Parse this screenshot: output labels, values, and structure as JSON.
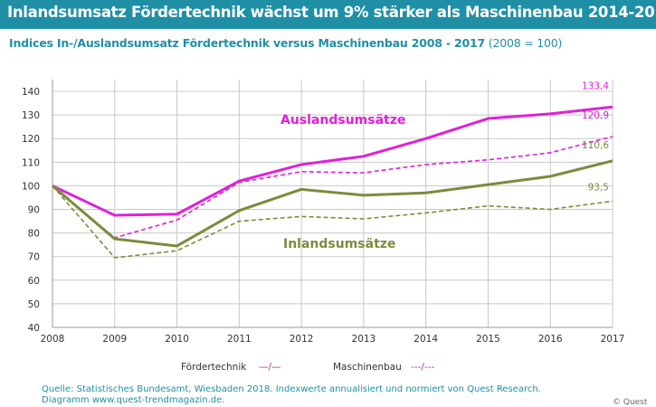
{
  "header": {
    "title": "Inlandsumsatz Fördertechnik wächst um 9% stärker als Maschinenbau 2014-2017",
    "subtitle_main": "Indices In-/Auslandsumsatz Fördertechnik versus Maschinenbau 2008 - 2017",
    "subtitle_base": "(2008 = 100)"
  },
  "chart_data": {
    "type": "line",
    "x": [
      2008,
      2009,
      2010,
      2011,
      2012,
      2013,
      2014,
      2015,
      2016,
      2017
    ],
    "ylim": [
      40,
      145
    ],
    "yticks": [
      40,
      50,
      60,
      70,
      80,
      90,
      100,
      110,
      120,
      130,
      140
    ],
    "grid": true,
    "series": [
      {
        "group": "Auslandsumsätze",
        "style": "solid",
        "color": "#e020d8",
        "values": [
          100,
          87.5,
          88,
          102,
          109,
          112.5,
          120,
          128.5,
          130.5,
          133.4
        ],
        "end_label": "133,4"
      },
      {
        "group": "Auslandsumsätze",
        "style": "dashed",
        "color": "#e020d8",
        "values": [
          100,
          78,
          85.5,
          101.5,
          106,
          105.5,
          109,
          111,
          114,
          120.9
        ],
        "end_label": "120,9"
      },
      {
        "group": "Inlandsumsätze",
        "style": "solid",
        "color": "#7b8c3c",
        "values": [
          100,
          77.5,
          74.5,
          89.5,
          98.5,
          96,
          97,
          100.5,
          104,
          110.6
        ],
        "end_label": "110,6"
      },
      {
        "group": "Inlandsumsätze",
        "style": "dashed",
        "color": "#7b8c3c",
        "values": [
          100,
          69.5,
          72.5,
          85,
          87,
          86,
          88.5,
          91.5,
          90,
          93.5
        ],
        "end_label": "93,5"
      }
    ],
    "annotations": [
      {
        "text": "Auslandsumsätze",
        "color": "#e020d8"
      },
      {
        "text": "Inlandsumsätze",
        "color": "#7b8c3c"
      }
    ],
    "legend": [
      {
        "label": "Fördertechnik",
        "symbol": "—/—"
      },
      {
        "label": "Maschinenbau",
        "symbol": "---/---"
      }
    ]
  },
  "footer": {
    "source_line": "Quelle: Statistisches Bundesamt, Wiesbaden 2018. Indexwerte annualisiert und normiert von Quest Research.",
    "diagram_line": "Diagramm  www.quest-trendmagazin.de.",
    "copyright": "© Quest"
  },
  "colors": {
    "banner": "#1f8fa6",
    "accent": "#1f8fa6",
    "grid": "#c8c8c8",
    "axis_text": "#333333"
  }
}
